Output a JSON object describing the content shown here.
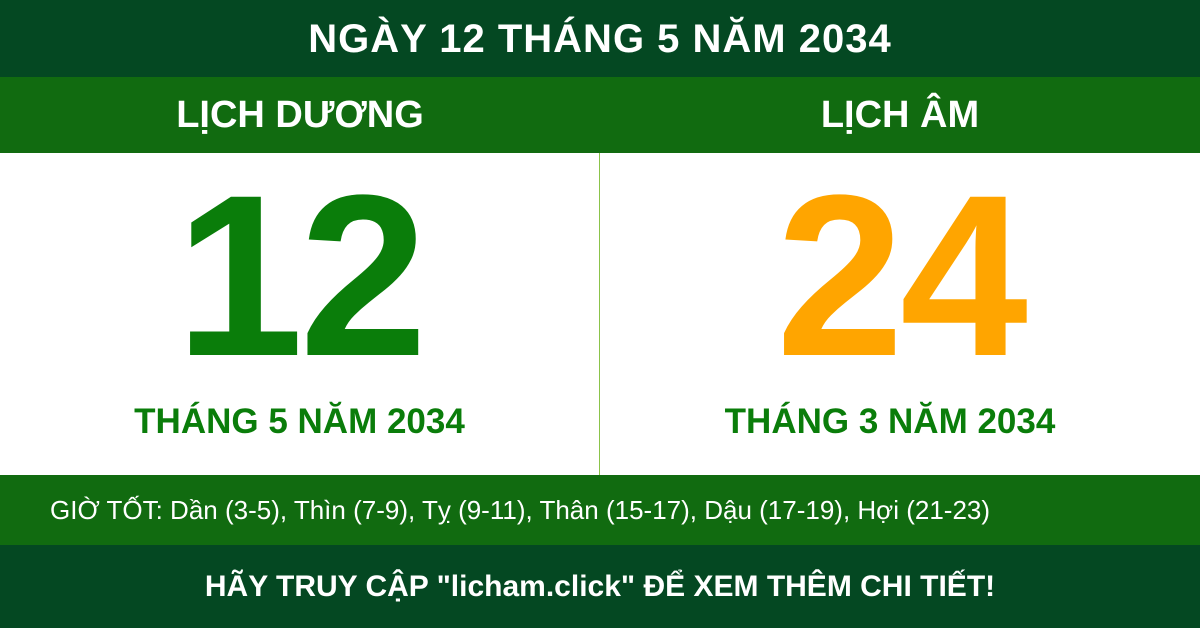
{
  "header": {
    "title": "NGÀY 12 THÁNG 5 NĂM 2034"
  },
  "solar": {
    "label": "LỊCH DƯƠNG",
    "day": "12",
    "month_year": "THÁNG 5 NĂM 2034",
    "color": "#0a7d0a"
  },
  "lunar": {
    "label": "LỊCH ÂM",
    "day": "24",
    "month_year": "THÁNG 3 NĂM 2034",
    "color": "#ffa500"
  },
  "good_hours": "GIỜ TỐT: Dần (3-5), Thìn (7-9), Tỵ (9-11), Thân (15-17), Dậu (17-19), Hợi (21-23)",
  "footer": "HÃY TRUY CẬP \"licham.click\" ĐỂ XEM THÊM CHI TIẾT!"
}
